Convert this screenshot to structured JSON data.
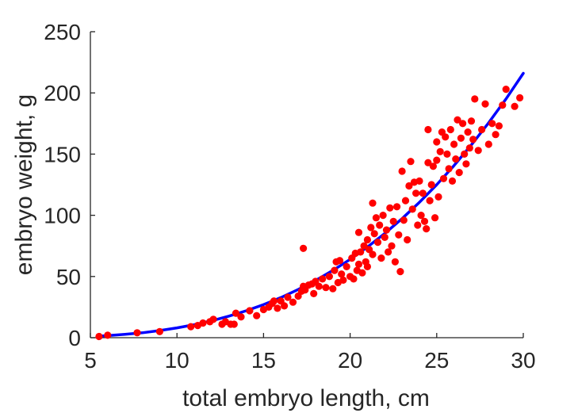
{
  "chart_data": {
    "type": "scatter",
    "xlabel": "total embryo length, cm",
    "ylabel": "embryo weight, g",
    "xlim": [
      5,
      30
    ],
    "ylim": [
      0,
      250
    ],
    "xticks": [
      5,
      10,
      15,
      20,
      25,
      30
    ],
    "yticks": [
      0,
      50,
      100,
      150,
      200,
      250
    ],
    "grid": false,
    "box": false,
    "colors": {
      "points": "#ff0000",
      "fit_line": "#0000ff",
      "axis": "#262626"
    },
    "series": [
      {
        "type": "scatter",
        "marker": "filled-circle",
        "color": "#ff0000",
        "points": [
          [
            5.5,
            1
          ],
          [
            6.0,
            2
          ],
          [
            7.7,
            4
          ],
          [
            9.0,
            5
          ],
          [
            10.8,
            9
          ],
          [
            11.2,
            10
          ],
          [
            11.5,
            12
          ],
          [
            11.9,
            13
          ],
          [
            12.1,
            15
          ],
          [
            12.6,
            11
          ],
          [
            12.8,
            13
          ],
          [
            13.1,
            11
          ],
          [
            13.3,
            11
          ],
          [
            13.4,
            20
          ],
          [
            13.7,
            17
          ],
          [
            14.2,
            22
          ],
          [
            14.6,
            18
          ],
          [
            15.0,
            23
          ],
          [
            15.3,
            25
          ],
          [
            15.5,
            28
          ],
          [
            15.6,
            30
          ],
          [
            15.8,
            24
          ],
          [
            16.0,
            30
          ],
          [
            16.2,
            26
          ],
          [
            16.4,
            33
          ],
          [
            16.7,
            29
          ],
          [
            17.0,
            34
          ],
          [
            17.2,
            38
          ],
          [
            17.3,
            42
          ],
          [
            17.3,
            73
          ],
          [
            17.4,
            39
          ],
          [
            17.6,
            43
          ],
          [
            17.8,
            44
          ],
          [
            17.9,
            36
          ],
          [
            18.0,
            46
          ],
          [
            18.2,
            42
          ],
          [
            18.4,
            48
          ],
          [
            18.6,
            41
          ],
          [
            18.8,
            50
          ],
          [
            19.0,
            40
          ],
          [
            19.1,
            55
          ],
          [
            19.2,
            62
          ],
          [
            19.3,
            45
          ],
          [
            19.4,
            63
          ],
          [
            19.5,
            52
          ],
          [
            19.6,
            47
          ],
          [
            19.8,
            58
          ],
          [
            20.0,
            50
          ],
          [
            20.1,
            65
          ],
          [
            20.2,
            48
          ],
          [
            20.3,
            69
          ],
          [
            20.4,
            55
          ],
          [
            20.5,
            60
          ],
          [
            20.5,
            86
          ],
          [
            20.6,
            70
          ],
          [
            20.7,
            53
          ],
          [
            20.8,
            75
          ],
          [
            20.9,
            62
          ],
          [
            21.0,
            80
          ],
          [
            21.0,
            58
          ],
          [
            21.1,
            72
          ],
          [
            21.2,
            90
          ],
          [
            21.3,
            68
          ],
          [
            21.3,
            110
          ],
          [
            21.4,
            85
          ],
          [
            21.5,
            98
          ],
          [
            21.6,
            78
          ],
          [
            21.7,
            92
          ],
          [
            21.8,
            65
          ],
          [
            21.9,
            100
          ],
          [
            22.0,
            82
          ],
          [
            22.1,
            88
          ],
          [
            22.2,
            70
          ],
          [
            22.3,
            106
          ],
          [
            22.4,
            75
          ],
          [
            22.5,
            95
          ],
          [
            22.6,
            62
          ],
          [
            22.7,
            107
          ],
          [
            22.8,
            84
          ],
          [
            22.9,
            54
          ],
          [
            23.0,
            136
          ],
          [
            23.1,
            96
          ],
          [
            23.2,
            112
          ],
          [
            23.3,
            80
          ],
          [
            23.4,
            124
          ],
          [
            23.5,
            144
          ],
          [
            23.6,
            105
          ],
          [
            23.7,
            127
          ],
          [
            23.8,
            118
          ],
          [
            23.9,
            92
          ],
          [
            24.0,
            128
          ],
          [
            24.1,
            100
          ],
          [
            24.2,
            118
          ],
          [
            24.3,
            95
          ],
          [
            24.4,
            89
          ],
          [
            24.5,
            143
          ],
          [
            24.5,
            170
          ],
          [
            24.6,
            112
          ],
          [
            24.7,
            125
          ],
          [
            24.8,
            140
          ],
          [
            24.9,
            98
          ],
          [
            25.0,
            145
          ],
          [
            25.0,
            160
          ],
          [
            25.1,
            115
          ],
          [
            25.2,
            152
          ],
          [
            25.3,
            168
          ],
          [
            25.4,
            130
          ],
          [
            25.5,
            164
          ],
          [
            25.6,
            150
          ],
          [
            25.7,
            138
          ],
          [
            25.8,
            170
          ],
          [
            25.9,
            128
          ],
          [
            26.0,
            158
          ],
          [
            26.1,
            146
          ],
          [
            26.2,
            178
          ],
          [
            26.3,
            135
          ],
          [
            26.4,
            163
          ],
          [
            26.5,
            175
          ],
          [
            26.6,
            150
          ],
          [
            26.7,
            142
          ],
          [
            26.8,
            168
          ],
          [
            26.9,
            155
          ],
          [
            27.0,
            177
          ],
          [
            27.1,
            162
          ],
          [
            27.2,
            195
          ],
          [
            27.4,
            153
          ],
          [
            27.6,
            170
          ],
          [
            27.8,
            191
          ],
          [
            28.0,
            158
          ],
          [
            28.2,
            175
          ],
          [
            28.4,
            166
          ],
          [
            28.6,
            173
          ],
          [
            28.8,
            190
          ],
          [
            29.0,
            203
          ],
          [
            29.5,
            189
          ],
          [
            29.8,
            196
          ]
        ]
      },
      {
        "type": "line",
        "color": "#0000ff",
        "points": [
          [
            5.5,
            1.3
          ],
          [
            6,
            1.7
          ],
          [
            7,
            2.7
          ],
          [
            8,
            4.0
          ],
          [
            9,
            5.8
          ],
          [
            10,
            8.0
          ],
          [
            11,
            10.6
          ],
          [
            12,
            13.8
          ],
          [
            13,
            17.6
          ],
          [
            14,
            22.0
          ],
          [
            15,
            27.0
          ],
          [
            16,
            32.8
          ],
          [
            17,
            39.4
          ],
          [
            18,
            46.7
          ],
          [
            19,
            54.9
          ],
          [
            20,
            64.0
          ],
          [
            21,
            74.1
          ],
          [
            22,
            85.2
          ],
          [
            23,
            97.3
          ],
          [
            24,
            110.6
          ],
          [
            25,
            125.0
          ],
          [
            26,
            140.6
          ],
          [
            27,
            157.5
          ],
          [
            28,
            175.6
          ],
          [
            29,
            195.1
          ],
          [
            30,
            216.0
          ]
        ]
      }
    ]
  }
}
